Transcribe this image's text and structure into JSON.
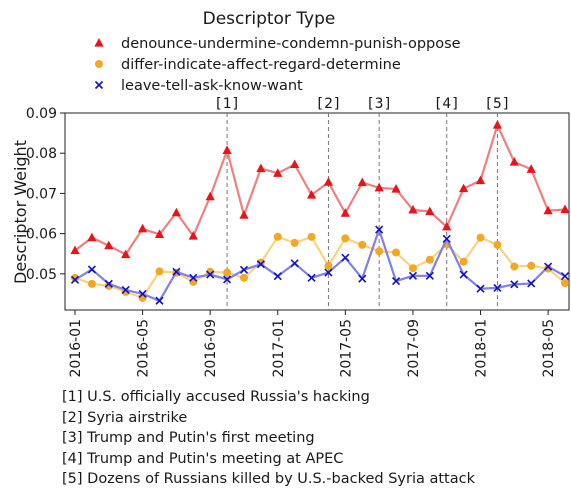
{
  "chart_data": {
    "type": "line",
    "ylabel": "Descriptor Weight",
    "ylim": [
      0.041,
      0.09
    ],
    "yticks": [
      "0.05",
      "0.06",
      "0.07",
      "0.08",
      "0.09"
    ],
    "x_tick_labels": [
      "2016-01",
      "2016-05",
      "2016-09",
      "2017-01",
      "2017-05",
      "2017-09",
      "2018-01",
      "2018-05"
    ],
    "x": [
      "2016-01",
      "2016-02",
      "2016-03",
      "2016-04",
      "2016-05",
      "2016-06",
      "2016-07",
      "2016-08",
      "2016-09",
      "2016-10",
      "2016-11",
      "2016-12",
      "2017-01",
      "2017-02",
      "2017-03",
      "2017-04",
      "2017-05",
      "2017-06",
      "2017-07",
      "2017-08",
      "2017-09",
      "2017-10",
      "2017-11",
      "2017-12",
      "2018-01",
      "2018-02",
      "2018-03",
      "2018-04",
      "2018-05",
      "2018-06"
    ],
    "grid": false,
    "legend": {
      "title": "Descriptor Type",
      "position": "top"
    },
    "series": [
      {
        "name": "denounce-undermine-condemn-punish-oppose",
        "color": "#e8141a",
        "line_color": "#f08080",
        "marker": "triangle",
        "values": [
          0.0558,
          0.059,
          0.057,
          0.0548,
          0.0612,
          0.0598,
          0.0652,
          0.0594,
          0.0692,
          0.0807,
          0.0646,
          0.0762,
          0.075,
          0.0772,
          0.0696,
          0.0728,
          0.0651,
          0.0727,
          0.0714,
          0.0711,
          0.0659,
          0.0655,
          0.0617,
          0.0712,
          0.0732,
          0.087,
          0.0778,
          0.076,
          0.0657,
          0.066
        ]
      },
      {
        "name": "differ-indicate-affect-regard-determine",
        "color": "#f5a623",
        "line_color": "#f8d383",
        "marker": "circle",
        "values": [
          0.049,
          0.0475,
          0.047,
          0.0455,
          0.044,
          0.0506,
          0.0503,
          0.048,
          0.0505,
          0.0503,
          0.049,
          0.0528,
          0.0592,
          0.0577,
          0.0592,
          0.052,
          0.0588,
          0.0572,
          0.0556,
          0.0553,
          0.0514,
          0.0535,
          0.0573,
          0.053,
          0.059,
          0.0572,
          0.0518,
          0.052,
          0.0513,
          0.0477
        ]
      },
      {
        "name": "leave-tell-ask-know-want",
        "color": "#1010c8",
        "line_color": "#8080e8",
        "marker": "x",
        "values": [
          0.0485,
          0.0511,
          0.0475,
          0.046,
          0.045,
          0.0433,
          0.0505,
          0.049,
          0.0498,
          0.0486,
          0.051,
          0.0524,
          0.0494,
          0.0526,
          0.049,
          0.0503,
          0.054,
          0.0488,
          0.061,
          0.0482,
          0.0495,
          0.0495,
          0.0587,
          0.0498,
          0.0463,
          0.0465,
          0.0474,
          0.0476,
          0.0518,
          0.0494
        ]
      }
    ],
    "events": [
      {
        "label": "[1]",
        "x": "2016-10"
      },
      {
        "label": "[2]",
        "x": "2017-04"
      },
      {
        "label": "[3]",
        "x": "2017-07"
      },
      {
        "label": "[4]",
        "x": "2017-11"
      },
      {
        "label": "[5]",
        "x": "2018-02"
      }
    ]
  },
  "notes": [
    "[1] U.S. officially accused Russia's hacking",
    "[2] Syria airstrike",
    "[3] Trump and Putin's first meeting",
    "[4] Trump and Putin's meeting at APEC",
    "[5] Dozens of Russians killed by U.S.-backed Syria attack"
  ]
}
